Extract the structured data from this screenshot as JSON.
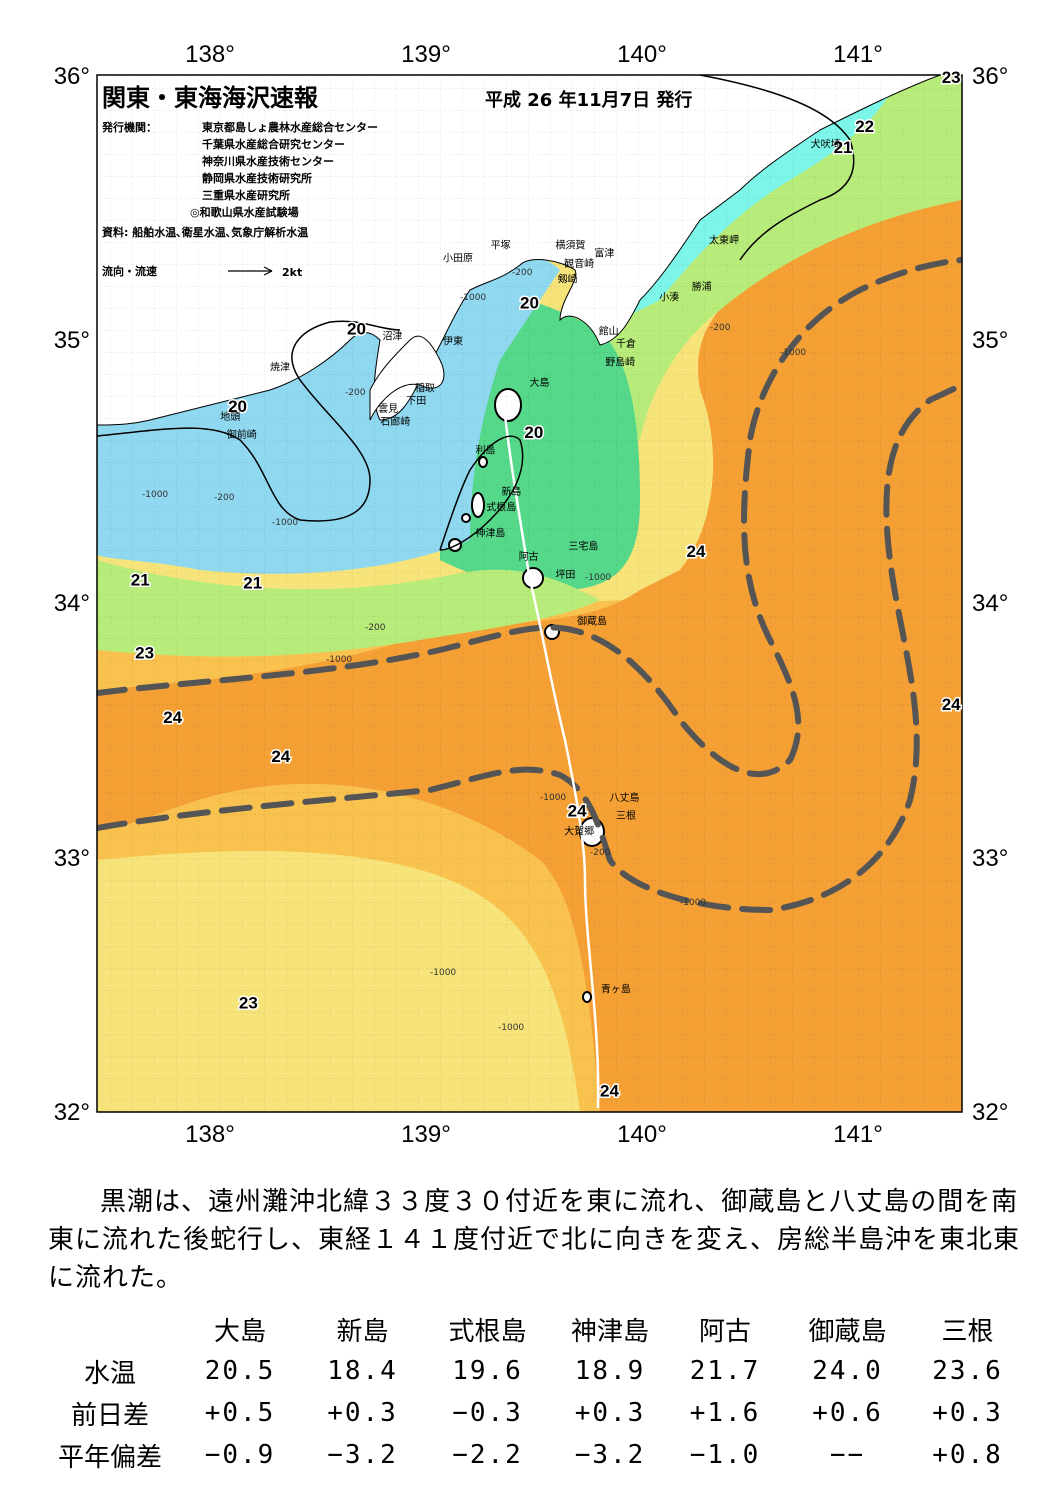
{
  "header": {
    "title": "関東・東海海沢速報",
    "date": "平成 26 年11月7日 発行",
    "issuer_label": "発行機関：",
    "issuers": [
      "東京都島しょ農林水産総合センター",
      "千葉県水産総合研究センター",
      "神奈川県水産技術センター",
      "静岡県水産技術研究所",
      "三重県水産研究所",
      "◎和歌山県水産試験場"
    ],
    "source": "資料: 船舶水温､衛星水温､気象庁解析水温",
    "flow_label": "流向・流速",
    "flow_scale": "2kt"
  },
  "axes": {
    "lon_labels": [
      "138°",
      "139°",
      "140°",
      "141°"
    ],
    "lat_labels": [
      "36°",
      "35°",
      "34°",
      "33°",
      "32°"
    ],
    "lon_range": [
      137.5,
      141.5
    ],
    "lat_range": [
      32,
      36
    ]
  },
  "isotherm_labels": [
    {
      "text": "20",
      "lon": 138.7,
      "lat": 35.0
    },
    {
      "text": "20",
      "lon": 138.15,
      "lat": 34.7
    },
    {
      "text": "20",
      "lon": 139.5,
      "lat": 35.1
    },
    {
      "text": "20",
      "lon": 139.52,
      "lat": 34.6
    },
    {
      "text": "21",
      "lon": 137.7,
      "lat": 34.03
    },
    {
      "text": "21",
      "lon": 138.22,
      "lat": 34.02
    },
    {
      "text": "21",
      "lon": 140.95,
      "lat": 35.7
    },
    {
      "text": "22",
      "lon": 141.05,
      "lat": 35.78
    },
    {
      "text": "23",
      "lon": 137.72,
      "lat": 33.75
    },
    {
      "text": "23",
      "lon": 138.2,
      "lat": 32.4
    },
    {
      "text": "24",
      "lon": 137.85,
      "lat": 33.5
    },
    {
      "text": "24",
      "lon": 138.35,
      "lat": 33.35
    },
    {
      "text": "24",
      "lon": 140.27,
      "lat": 34.14
    },
    {
      "text": "24",
      "lon": 139.87,
      "lat": 32.06
    },
    {
      "text": "24",
      "lon": 141.45,
      "lat": 33.55
    },
    {
      "text": "24",
      "lon": 139.72,
      "lat": 33.14
    },
    {
      "text": "23",
      "lon": 141.45,
      "lat": 35.97
    }
  ],
  "place_names": [
    {
      "text": "犬吠埼",
      "lon": 140.8,
      "lat": 35.72
    },
    {
      "text": "太東岬",
      "lon": 140.33,
      "lat": 35.35
    },
    {
      "text": "勝浦",
      "lon": 140.25,
      "lat": 35.17
    },
    {
      "text": "小湊",
      "lon": 140.1,
      "lat": 35.13
    },
    {
      "text": "富津",
      "lon": 139.8,
      "lat": 35.3
    },
    {
      "text": "館山",
      "lon": 139.82,
      "lat": 35.0
    },
    {
      "text": "千倉",
      "lon": 139.9,
      "lat": 34.95
    },
    {
      "text": "野島崎",
      "lon": 139.85,
      "lat": 34.88
    },
    {
      "text": "横須賀",
      "lon": 139.62,
      "lat": 35.33
    },
    {
      "text": "観音崎",
      "lon": 139.66,
      "lat": 35.26
    },
    {
      "text": "剱崎",
      "lon": 139.63,
      "lat": 35.2
    },
    {
      "text": "平塚",
      "lon": 139.32,
      "lat": 35.33
    },
    {
      "text": "小田原",
      "lon": 139.1,
      "lat": 35.28
    },
    {
      "text": "沼津",
      "lon": 138.82,
      "lat": 34.98
    },
    {
      "text": "伊東",
      "lon": 139.1,
      "lat": 34.96
    },
    {
      "text": "焼津",
      "lon": 138.3,
      "lat": 34.86
    },
    {
      "text": "稲取",
      "lon": 138.97,
      "lat": 34.78
    },
    {
      "text": "下田",
      "lon": 138.93,
      "lat": 34.73
    },
    {
      "text": "雲見",
      "lon": 138.8,
      "lat": 34.7
    },
    {
      "text": "石廊崎",
      "lon": 138.81,
      "lat": 34.65
    },
    {
      "text": "地頭",
      "lon": 138.07,
      "lat": 34.67
    },
    {
      "text": "御前崎",
      "lon": 138.1,
      "lat": 34.6
    },
    {
      "text": "大島",
      "lon": 139.5,
      "lat": 34.8
    },
    {
      "text": "利島",
      "lon": 139.25,
      "lat": 34.54
    },
    {
      "text": "新島",
      "lon": 139.37,
      "lat": 34.38
    },
    {
      "text": "式根島",
      "lon": 139.3,
      "lat": 34.32
    },
    {
      "text": "神津島",
      "lon": 139.25,
      "lat": 34.22
    },
    {
      "text": "阿古",
      "lon": 139.45,
      "lat": 34.13
    },
    {
      "text": "三宅島",
      "lon": 139.68,
      "lat": 34.17
    },
    {
      "text": "坪田",
      "lon": 139.62,
      "lat": 34.06
    },
    {
      "text": "御蔵島",
      "lon": 139.72,
      "lat": 33.88
    },
    {
      "text": "八丈島",
      "lon": 139.87,
      "lat": 33.2
    },
    {
      "text": "三根",
      "lon": 139.9,
      "lat": 33.13
    },
    {
      "text": "大賀郷",
      "lon": 139.66,
      "lat": 33.07
    },
    {
      "text": "青ヶ島",
      "lon": 139.83,
      "lat": 32.46
    }
  ],
  "depth_labels": [
    "-200",
    "-1000"
  ],
  "kuroshio_path_desc": "",
  "description": "黒潮は、遠州灘沖北緯３３度３０付近を東に流れ、御蔵島と八丈島の間を南東に流れた後蛇行し、東経１４１度付近で北に向きを変え、房総半島沖を東北東に流れた。",
  "table": {
    "stations": [
      "大島",
      "新島",
      "式根島",
      "神津島",
      "阿古",
      "御蔵島",
      "三根"
    ],
    "rows": [
      {
        "label": "水温",
        "values": [
          "20.5",
          "18.4",
          "19.6",
          "18.9",
          "21.7",
          "24.0",
          "23.6"
        ]
      },
      {
        "label": "前日差",
        "values": [
          "+0.5",
          "+0.3",
          "−0.3",
          "+0.3",
          "+1.6",
          "+0.6",
          "+0.3"
        ]
      },
      {
        "label": "平年偏差",
        "values": [
          "−0.9",
          "−3.2",
          "−2.2",
          "−3.2",
          "−1.0",
          "−−",
          "+0.8"
        ]
      }
    ]
  },
  "colors": {
    "land": "#ffffff",
    "cold_cyan": "#7df5e8",
    "cool_blue": "#8fd8f0",
    "green": "#55d88a",
    "light_green": "#b8ec7a",
    "yellow": "#f6e37a",
    "light_orange": "#f9c24e",
    "orange": "#f4a035",
    "kuroshio_line": "#555555"
  }
}
